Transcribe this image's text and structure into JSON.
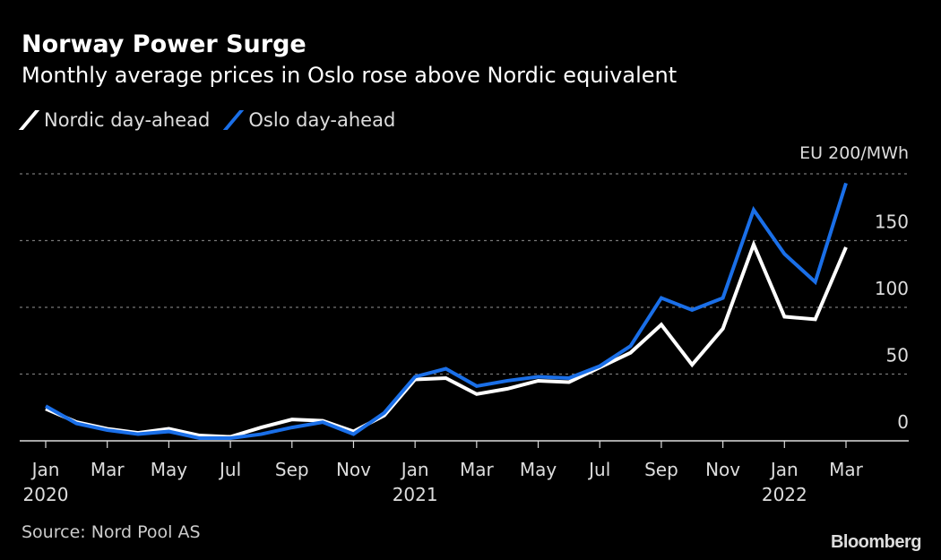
{
  "title": "Norway Power Surge",
  "subtitle": "Monthly average prices in Oslo rose above Nordic equivalent",
  "source": "Source: Nord Pool AS",
  "logo": "Bloomberg",
  "chart_data": {
    "type": "line",
    "unit_label": "EU 200/MWh",
    "ylim": [
      0,
      200
    ],
    "yticks": [
      0,
      50,
      100,
      150
    ],
    "grid": true,
    "legend_placement": "top-left",
    "x": [
      "2020-01",
      "2020-02",
      "2020-03",
      "2020-04",
      "2020-05",
      "2020-06",
      "2020-07",
      "2020-08",
      "2020-09",
      "2020-10",
      "2020-11",
      "2020-12",
      "2021-01",
      "2021-02",
      "2021-03",
      "2021-04",
      "2021-05",
      "2021-06",
      "2021-07",
      "2021-08",
      "2021-09",
      "2021-10",
      "2021-11",
      "2021-12",
      "2022-01",
      "2022-02",
      "2022-03"
    ],
    "xtick_labels": [
      {
        "month": "Jan",
        "year": "2020",
        "index": 0
      },
      {
        "month": "Mar",
        "index": 2
      },
      {
        "month": "May",
        "index": 4
      },
      {
        "month": "Jul",
        "index": 6
      },
      {
        "month": "Sep",
        "index": 8
      },
      {
        "month": "Nov",
        "index": 10
      },
      {
        "month": "Jan",
        "year": "2021",
        "index": 12
      },
      {
        "month": "Mar",
        "index": 14
      },
      {
        "month": "May",
        "index": 16
      },
      {
        "month": "Jul",
        "index": 18
      },
      {
        "month": "Sep",
        "index": 20
      },
      {
        "month": "Nov",
        "index": 22
      },
      {
        "month": "Jan",
        "year": "2022",
        "index": 24
      },
      {
        "month": "Mar",
        "index": 26
      }
    ],
    "series": [
      {
        "name": "Nordic day-ahead",
        "color": "#ffffff",
        "values": [
          24,
          14,
          9,
          6,
          9,
          4,
          3,
          10,
          16,
          15,
          7,
          19,
          46,
          47,
          35,
          39,
          45,
          44,
          55,
          66,
          87,
          57,
          84,
          147,
          93,
          91,
          145
        ]
      },
      {
        "name": "Oslo day-ahead",
        "color": "#1a6fe8",
        "values": [
          26,
          13,
          8,
          5,
          7,
          2,
          2,
          5,
          10,
          14,
          5,
          21,
          48,
          54,
          41,
          45,
          48,
          47,
          56,
          71,
          107,
          98,
          107,
          173,
          140,
          119,
          193
        ]
      }
    ]
  }
}
